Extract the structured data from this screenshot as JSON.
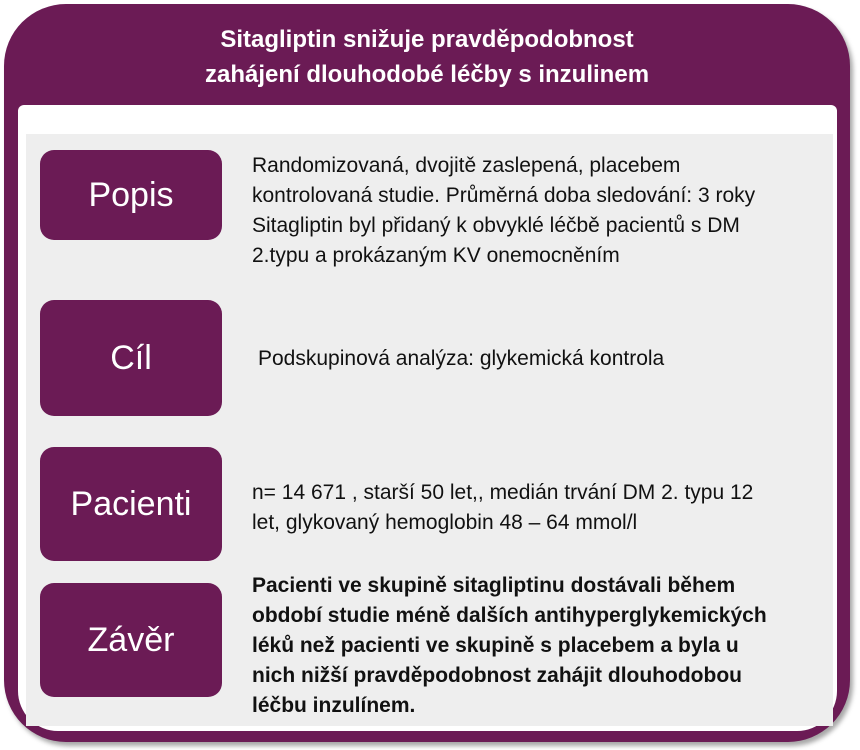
{
  "title": {
    "line1": "Sitagliptin snižuje pravděpodobnost",
    "line2": "zahájení dlouhodobé léčby s inzulinem"
  },
  "rows": [
    {
      "label": "Popis",
      "lines": [
        "Randomizovaná, dvojitě zaslepená, placebem",
        "kontrolovaná studie. Průměrná doba sledování: 3 roky",
        "Sitagliptin byl přidaný k obvyklé léčbě pacientů s DM",
        "2.typu a prokázaným KV onemocněním"
      ]
    },
    {
      "label": "Cíl",
      "lines": [
        "Podskupinová analýza: glykemická kontrola"
      ]
    },
    {
      "label": "Pacienti",
      "lines": [
        "n= 14 671 , starší 50 let,, medián trvání DM 2. typu 12",
        "let, glykovaný hemoglobin  48 – 64 mmol/l"
      ]
    },
    {
      "label": "Závěr",
      "lines": [
        "Pacienti ve skupině sitagliptinu dostávali během",
        "období studie méně dalších antihyperglykemických",
        "léků než pacienti ve skupině s placebem a byla u",
        "nich nižší pravděpodobnost zahájit dlouhodobou",
        "léčbu inzulínem."
      ]
    }
  ]
}
